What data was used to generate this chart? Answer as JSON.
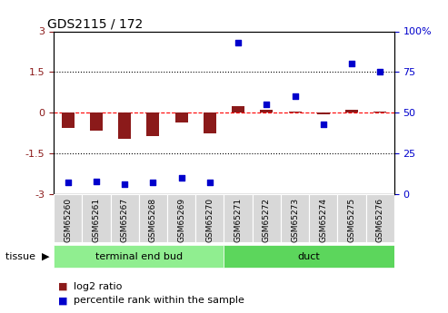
{
  "title": "GDS2115 / 172",
  "samples": [
    "GSM65260",
    "GSM65261",
    "GSM65267",
    "GSM65268",
    "GSM65269",
    "GSM65270",
    "GSM65271",
    "GSM65272",
    "GSM65273",
    "GSM65274",
    "GSM65275",
    "GSM65276"
  ],
  "log2_ratio": [
    -0.55,
    -0.65,
    -0.95,
    -0.85,
    -0.35,
    -0.75,
    0.25,
    0.1,
    0.05,
    -0.05,
    0.12,
    0.05
  ],
  "percentile": [
    7,
    8,
    6,
    7,
    10,
    7,
    93,
    55,
    60,
    43,
    80,
    75
  ],
  "tissue_groups": [
    {
      "label": "terminal end bud",
      "start": 0,
      "end": 6,
      "color": "#90EE90"
    },
    {
      "label": "duct",
      "start": 6,
      "end": 12,
      "color": "#5CD65C"
    }
  ],
  "bar_color": "#8B1A1A",
  "dot_color": "#0000CC",
  "left_ylim": [
    -3,
    3
  ],
  "right_ylim": [
    0,
    100
  ],
  "left_yticks": [
    -3,
    -1.5,
    0,
    1.5,
    3
  ],
  "right_yticks": [
    0,
    25,
    50,
    75,
    100
  ],
  "hline_y": [
    1.5,
    0,
    -1.5
  ],
  "hline_styles": [
    "dotted",
    "dashed",
    "dotted"
  ],
  "hline_colors": [
    "black",
    "red",
    "black"
  ],
  "tissue_label": "tissue",
  "legend_red": "log2 ratio",
  "legend_blue": "percentile rank within the sample",
  "bg_color": "#FFFFFF",
  "xlabel_bg": "#D8D8D8",
  "tissue_colors": [
    "#AAFFAA",
    "#66DD66"
  ]
}
